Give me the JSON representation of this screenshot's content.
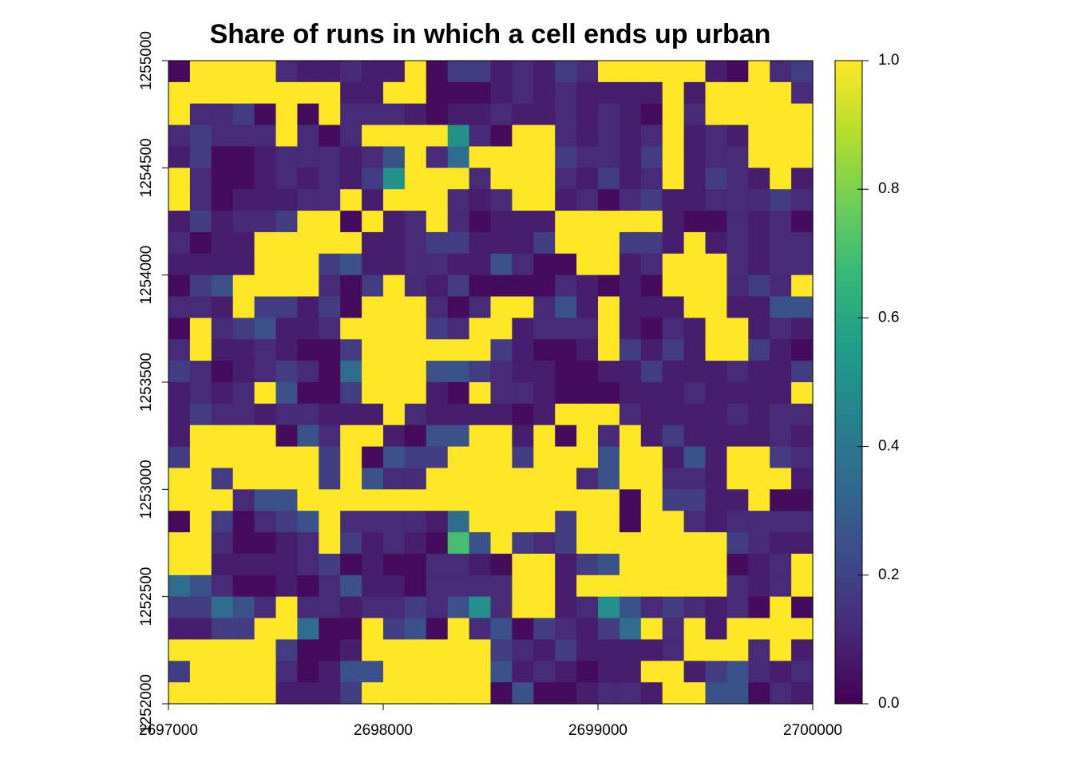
{
  "chart_data": {
    "type": "heatmap",
    "title": "Share of runs in which a cell ends up urban",
    "colormap": "viridis",
    "xlim": [
      2697000,
      2700000
    ],
    "xticks": [
      2697000,
      2698000,
      2699000,
      2700000
    ],
    "ylim": [
      1252000,
      1255000
    ],
    "yticks": [
      1252000,
      1252500,
      1253000,
      1253500,
      1254000,
      1254500,
      1255000
    ],
    "zlim": [
      0,
      1
    ],
    "zticks": [
      {
        "value": 0,
        "label": "0.0"
      },
      0.2,
      0.4,
      0.6,
      0.8,
      {
        "value": 1,
        "label": "1.0"
      }
    ],
    "z": [
      [
        0.03,
        1,
        1,
        1,
        1,
        0.12,
        0.08,
        0.08,
        0.12,
        0.08,
        0.08,
        1,
        0.03,
        0.18,
        0.18,
        0.08,
        0.12,
        0.08,
        0.18,
        0.12,
        1,
        1,
        1,
        1,
        1,
        0.08,
        0.03,
        1,
        0.12,
        0.18
      ],
      [
        1,
        1,
        1,
        1,
        1,
        1,
        1,
        1,
        0.08,
        0.08,
        1,
        1,
        0.03,
        0.03,
        0.03,
        0.08,
        0.12,
        0.08,
        0.12,
        0.08,
        0.08,
        0.08,
        0.08,
        1,
        0.08,
        1,
        1,
        1,
        1,
        0.12
      ],
      [
        1,
        0.12,
        0.12,
        0.18,
        0.03,
        1,
        0.03,
        1,
        0.12,
        0.12,
        0.12,
        0.08,
        0.03,
        0.08,
        0.08,
        0.12,
        0.08,
        0.08,
        0.12,
        0.08,
        0.12,
        0.08,
        0.03,
        1,
        0.12,
        1,
        1,
        1,
        1,
        1
      ],
      [
        0.12,
        0.18,
        0.12,
        0.12,
        0.12,
        1,
        0.12,
        0.03,
        0.12,
        1,
        1,
        1,
        1,
        0.5,
        0.12,
        0.03,
        1,
        1,
        0.12,
        0.08,
        0.12,
        0.08,
        0.12,
        1,
        0.08,
        0.12,
        0.08,
        1,
        1,
        1
      ],
      [
        0.08,
        0.18,
        0.03,
        0.03,
        0.08,
        0.12,
        0.12,
        0.12,
        0.08,
        0.12,
        0.25,
        1,
        0.12,
        0.35,
        1,
        1,
        1,
        1,
        0.18,
        0.12,
        0.12,
        0.08,
        0.18,
        1,
        0.08,
        0.12,
        0.12,
        1,
        1,
        1
      ],
      [
        1,
        0.12,
        0.03,
        0.03,
        0.08,
        0.12,
        0.08,
        0.12,
        0.08,
        0.18,
        0.5,
        1,
        1,
        1,
        0.12,
        1,
        1,
        1,
        0.12,
        0.08,
        0.18,
        0.08,
        0.12,
        1,
        0.08,
        0.18,
        0.12,
        0.08,
        1,
        0.08
      ],
      [
        1,
        0.12,
        0.03,
        0.08,
        0.08,
        0.08,
        0.12,
        0.12,
        1,
        0.08,
        1,
        1,
        1,
        0.12,
        0.08,
        0.12,
        1,
        1,
        0.08,
        0.12,
        0.03,
        0.12,
        0.18,
        0.08,
        0.08,
        0.12,
        0.12,
        0.12,
        0.18,
        0.12
      ],
      [
        0.08,
        0.18,
        0.08,
        0.12,
        0.12,
        0.18,
        1,
        1,
        0.03,
        1,
        0.08,
        0.12,
        1,
        0.12,
        0.03,
        0.08,
        0.08,
        0.08,
        1,
        1,
        1,
        1,
        1,
        0.08,
        0.03,
        0.03,
        0.12,
        0.08,
        0.12,
        0.03
      ],
      [
        0.12,
        0.03,
        0.08,
        0.08,
        1,
        1,
        1,
        1,
        1,
        0.08,
        0.08,
        0.12,
        0.18,
        0.18,
        0.08,
        0.08,
        0.08,
        0.18,
        1,
        1,
        1,
        0.18,
        0.18,
        0.08,
        1,
        0.08,
        0.12,
        0.08,
        0.12,
        0.12
      ],
      [
        0.08,
        0.08,
        0.08,
        0.08,
        1,
        1,
        1,
        0.18,
        0.25,
        0.08,
        0.08,
        0.12,
        0.12,
        0.08,
        0.08,
        0.25,
        0.12,
        0.03,
        0.03,
        1,
        1,
        0.08,
        0.12,
        1,
        1,
        1,
        0.12,
        0.08,
        0.12,
        0.12
      ],
      [
        0.03,
        0.18,
        0.25,
        1,
        1,
        1,
        1,
        0.12,
        0.03,
        0.18,
        1,
        0.12,
        0.08,
        0.18,
        0.03,
        0.03,
        0.03,
        0.03,
        0.12,
        0.08,
        0.03,
        0.08,
        0.03,
        1,
        1,
        1,
        0.12,
        0.18,
        0.12,
        1
      ],
      [
        0.12,
        0.12,
        0.08,
        1,
        0.18,
        0.18,
        0.08,
        0.18,
        0.03,
        1,
        1,
        1,
        0.12,
        0.03,
        0.12,
        1,
        1,
        0.12,
        0.25,
        0.08,
        1,
        0.08,
        0.08,
        0.08,
        1,
        1,
        0.08,
        0.08,
        0.25,
        0.25
      ],
      [
        0.03,
        1,
        0.12,
        0.18,
        0.25,
        0.08,
        0.08,
        0.12,
        1,
        1,
        1,
        1,
        0.18,
        0.12,
        1,
        1,
        0.08,
        0.12,
        0.12,
        0.12,
        1,
        0.08,
        0.03,
        0.12,
        0.08,
        1,
        1,
        0.08,
        0.12,
        0.08
      ],
      [
        0.12,
        1,
        0.08,
        0.08,
        0.12,
        0.08,
        0.03,
        0.03,
        0.18,
        1,
        1,
        1,
        1,
        1,
        1,
        0.18,
        0.08,
        0.03,
        0.03,
        0.08,
        1,
        0.18,
        0.08,
        0.18,
        0.08,
        1,
        1,
        0.18,
        0.08,
        0.03
      ],
      [
        0.18,
        0.12,
        0.03,
        0.08,
        0.12,
        0.18,
        0.12,
        0.03,
        0.35,
        1,
        1,
        1,
        0.25,
        0.25,
        0.18,
        0.12,
        0.08,
        0.08,
        0.03,
        0.03,
        0.08,
        0.08,
        0.18,
        0.08,
        0.08,
        0.08,
        0.12,
        0.08,
        0.08,
        0.18
      ],
      [
        0.08,
        0.12,
        0.08,
        0.12,
        1,
        0.25,
        0.03,
        0.03,
        0.18,
        1,
        1,
        1,
        0.08,
        0.03,
        1,
        0.12,
        0.12,
        0.08,
        0.03,
        0.03,
        0.03,
        0.08,
        0.08,
        0.08,
        0.12,
        0.08,
        0.08,
        0.08,
        0.08,
        1
      ],
      [
        0.08,
        0.18,
        0.12,
        0.12,
        0.08,
        0.12,
        0.12,
        0.08,
        0.08,
        0.08,
        1,
        0.12,
        0.08,
        0.08,
        0.08,
        0.08,
        0.03,
        0.08,
        1,
        1,
        1,
        0.12,
        0.08,
        0.08,
        0.08,
        0.08,
        0.12,
        0.08,
        0.12,
        0.12
      ],
      [
        0.08,
        1,
        1,
        1,
        1,
        0.03,
        0.25,
        0.12,
        1,
        1,
        0.08,
        0.03,
        0.25,
        0.25,
        1,
        1,
        0.08,
        1,
        0.03,
        1,
        0.12,
        1,
        0.08,
        0.18,
        0.08,
        0.08,
        0.08,
        0.08,
        0.12,
        0.08
      ],
      [
        0.18,
        1,
        1,
        1,
        1,
        1,
        1,
        0.18,
        1,
        0.03,
        0.25,
        0.18,
        0.18,
        1,
        1,
        1,
        0.18,
        1,
        1,
        1,
        0.25,
        1,
        1,
        0.08,
        0.25,
        0.08,
        1,
        1,
        0.18,
        0.12
      ],
      [
        1,
        1,
        0.18,
        1,
        1,
        1,
        1,
        0.18,
        1,
        0.25,
        0.12,
        0.12,
        1,
        1,
        1,
        1,
        1,
        1,
        1,
        0.12,
        0.25,
        1,
        1,
        0.12,
        0.12,
        0.08,
        1,
        1,
        1,
        0.08
      ],
      [
        1,
        1,
        1,
        0.12,
        0.25,
        0.25,
        1,
        1,
        1,
        1,
        1,
        1,
        1,
        1,
        1,
        1,
        1,
        1,
        1,
        1,
        1,
        0.03,
        1,
        0.18,
        0.18,
        0.08,
        0.08,
        1,
        0.03,
        0.03
      ],
      [
        0.03,
        1,
        0.18,
        0.03,
        0.12,
        0.18,
        0.25,
        1,
        0.12,
        0.12,
        0.12,
        0.12,
        0.08,
        0.35,
        1,
        1,
        1,
        1,
        0.18,
        1,
        1,
        0.03,
        1,
        1,
        0.12,
        0.08,
        0.12,
        0.12,
        0.12,
        0.12
      ],
      [
        1,
        1,
        0.12,
        0.03,
        0.03,
        0.08,
        0.12,
        1,
        0.18,
        0.08,
        0.12,
        0.08,
        0.03,
        0.7,
        0.25,
        1,
        0.18,
        0.12,
        0.18,
        1,
        1,
        1,
        1,
        1,
        1,
        1,
        0.18,
        0.12,
        0.08,
        0.08
      ],
      [
        1,
        1,
        0.08,
        0.08,
        0.08,
        0.08,
        0.12,
        0.18,
        0.03,
        0.08,
        0.03,
        0.03,
        0.12,
        0.12,
        0.08,
        0.03,
        1,
        1,
        0.08,
        0.18,
        0.25,
        1,
        1,
        1,
        1,
        1,
        0.03,
        0.08,
        0.12,
        1
      ],
      [
        0.35,
        0.25,
        0.12,
        0.03,
        0.03,
        0.08,
        0.03,
        0.12,
        0.25,
        0.08,
        0.08,
        0.03,
        0.12,
        0.12,
        0.12,
        0.12,
        1,
        1,
        0.08,
        1,
        1,
        1,
        1,
        1,
        1,
        1,
        0.12,
        0.08,
        0.12,
        1
      ],
      [
        0.18,
        0.18,
        0.35,
        0.25,
        0.12,
        1,
        0.12,
        0.12,
        0.08,
        0.12,
        0.12,
        0.18,
        0.12,
        0.25,
        0.5,
        0.12,
        1,
        1,
        0.08,
        0.12,
        0.5,
        0.25,
        0.12,
        0.18,
        0.12,
        0.08,
        0.12,
        0.03,
        1,
        0.03
      ],
      [
        0.08,
        0.08,
        0.18,
        0.18,
        1,
        1,
        0.35,
        0.03,
        0.03,
        1,
        0.18,
        0.25,
        0.03,
        1,
        0.12,
        0.25,
        0.03,
        0.18,
        0.12,
        0.08,
        0.18,
        0.35,
        1,
        0.12,
        1,
        0.08,
        1,
        1,
        1,
        1
      ],
      [
        1,
        1,
        1,
        1,
        1,
        0.18,
        0.03,
        0.03,
        0.08,
        1,
        1,
        1,
        1,
        1,
        1,
        0.18,
        0.12,
        0.08,
        0.18,
        0.08,
        0.08,
        0.08,
        0.08,
        0.12,
        1,
        1,
        1,
        0.12,
        1,
        0.08
      ],
      [
        0.18,
        1,
        1,
        1,
        1,
        0.12,
        0.03,
        0.08,
        0.25,
        0.25,
        1,
        1,
        1,
        1,
        1,
        0.25,
        0.08,
        0.12,
        0.08,
        0.03,
        0.08,
        0.08,
        1,
        1,
        0.08,
        0.18,
        0.25,
        0.12,
        0.08,
        0.12
      ],
      [
        1,
        1,
        1,
        1,
        1,
        0.08,
        0.08,
        0.08,
        0.18,
        1,
        1,
        1,
        1,
        1,
        1,
        0.03,
        0.25,
        0.03,
        0.03,
        0.08,
        0.12,
        0.12,
        0.08,
        1,
        1,
        0.25,
        0.25,
        0.03,
        0.12,
        0.08
      ]
    ]
  }
}
